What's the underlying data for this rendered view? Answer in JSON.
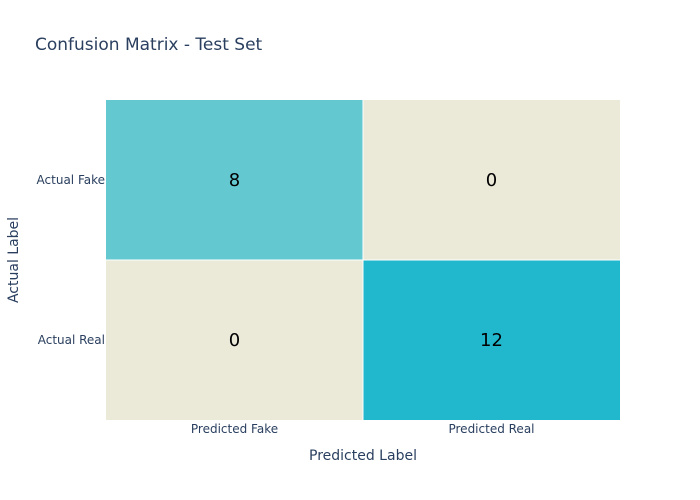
{
  "chart_data": {
    "type": "heatmap",
    "title": "Confusion Matrix - Test Set",
    "xlabel": "Predicted Label",
    "ylabel": "Actual Label",
    "x_categories": [
      "Predicted Fake",
      "Predicted Real"
    ],
    "y_categories": [
      "Actual Fake",
      "Actual Real"
    ],
    "values": [
      [
        8,
        0
      ],
      [
        0,
        12
      ]
    ],
    "zlim": [
      0,
      12
    ],
    "colorscale": [
      "#ebe9d7",
      "#21b8cd"
    ],
    "colorbar": false
  }
}
